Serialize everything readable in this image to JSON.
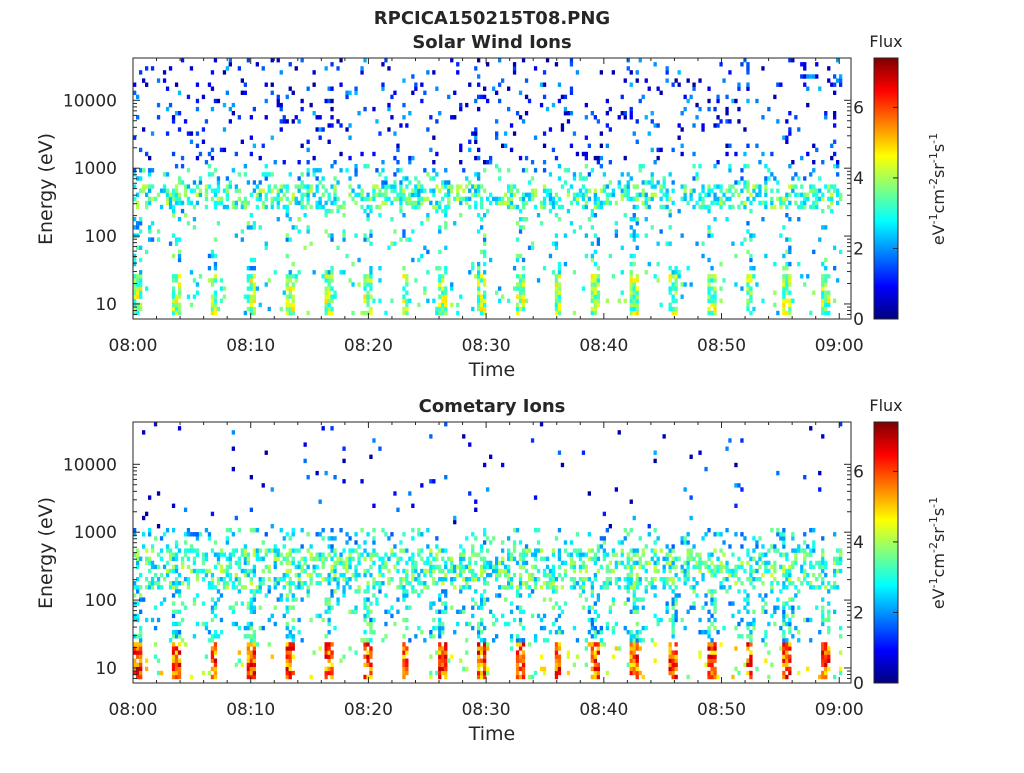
{
  "figure": {
    "title_line1": "RPCICA150215T08.PNG"
  },
  "colorbar": {
    "label": "Flux",
    "unit_base": [
      "eV",
      "cm",
      "sr",
      "s"
    ],
    "unit_exponents": [
      "-1",
      "-2",
      "-1",
      "-1"
    ],
    "ticks": [
      "0",
      "2",
      "4",
      "6"
    ],
    "range": [
      0,
      7.4
    ],
    "colormap": "jet"
  },
  "chart_data": [
    {
      "type": "heatmap",
      "title": "Solar Wind Ions",
      "xlabel": "Time",
      "ylabel": "Energy (eV)",
      "x_ticks": [
        "08:00",
        "08:10",
        "08:20",
        "08:30",
        "08:40",
        "08:50",
        "09:00"
      ],
      "x_range_minutes": [
        0,
        61
      ],
      "y_ticks": [
        "10",
        "100",
        "1000",
        "10000"
      ],
      "y_scale": "log",
      "y_range": [
        6,
        42000
      ],
      "color_scale": "Flux",
      "color_range": [
        0,
        7.4
      ],
      "observed_features": {
        "low_energy_band_eV": [
          7,
          28
        ],
        "mid_energy_band_eV": [
          250,
          600
        ],
        "typical_low_band_flux": 3.5,
        "typical_mid_band_flux": 4
      }
    },
    {
      "type": "heatmap",
      "title": "Cometary Ions",
      "xlabel": "Time",
      "ylabel": "Energy (eV)",
      "x_ticks": [
        "08:00",
        "08:10",
        "08:20",
        "08:30",
        "08:40",
        "08:50",
        "09:00"
      ],
      "x_range_minutes": [
        0,
        61
      ],
      "y_ticks": [
        "10",
        "100",
        "1000",
        "10000"
      ],
      "y_scale": "log",
      "y_range": [
        6,
        42000
      ],
      "color_scale": "Flux",
      "color_range": [
        0,
        7.4
      ],
      "observed_features": {
        "low_energy_band_eV": [
          7,
          25
        ],
        "peak_flux_in_low_band": 6.5,
        "mid_energy_band_eV": [
          150,
          600
        ]
      }
    }
  ]
}
